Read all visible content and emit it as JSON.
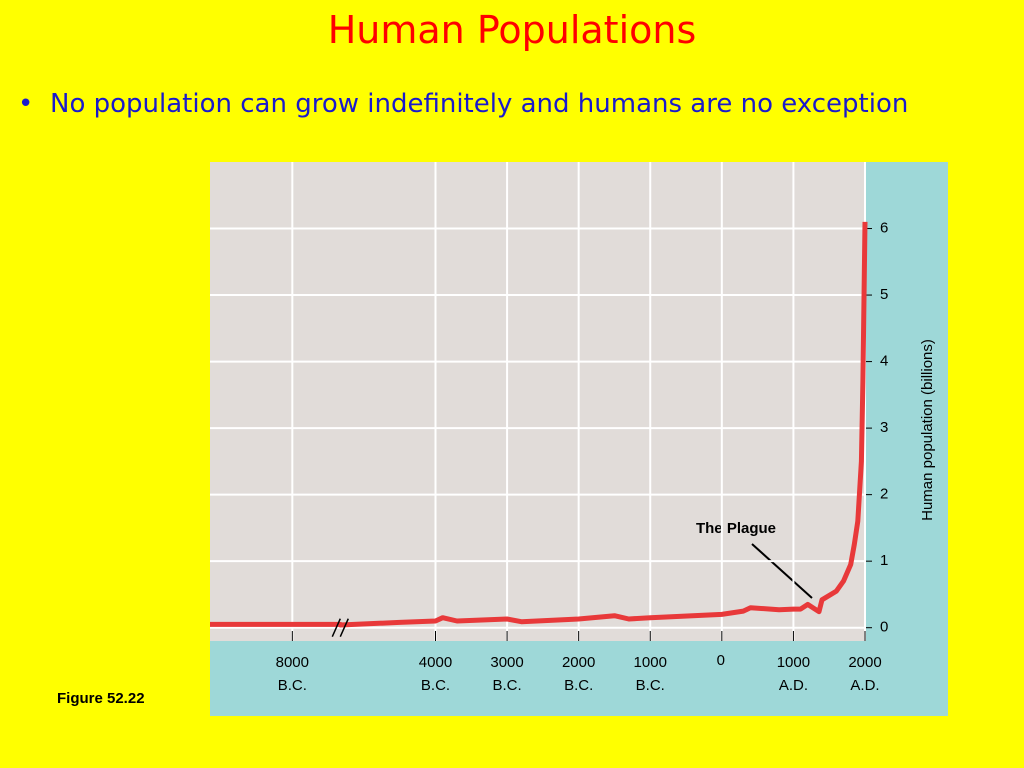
{
  "title": "Human Populations",
  "bullets": [
    "No population can grow indefinitely and humans are no exception"
  ],
  "figure_label": "Figure 52.22",
  "chart_data": {
    "type": "line",
    "y_label": "Human population (billions)",
    "annotation": "The Plague",
    "xlim": [
      -9150,
      2000
    ],
    "x_break": [
      -7330,
      -5330
    ],
    "xticks": [
      {
        "value": -8000,
        "label": "8000",
        "era": "B.C."
      },
      {
        "value": -4000,
        "label": "4000",
        "era": "B.C."
      },
      {
        "value": -3000,
        "label": "3000",
        "era": "B.C."
      },
      {
        "value": -2000,
        "label": "2000",
        "era": "B.C."
      },
      {
        "value": -1000,
        "label": "1000",
        "era": "B.C."
      },
      0,
      {
        "value": 1000,
        "label": "1000",
        "era": "A.D."
      },
      {
        "value": 2000,
        "label": "2000",
        "era": "A.D."
      }
    ],
    "ylim": [
      -0.2,
      7
    ],
    "yticks": [
      0,
      1,
      2,
      3,
      4,
      5,
      6
    ],
    "grid": true,
    "series": [
      {
        "name": "Human population",
        "color": "#e8393a",
        "x": [
          -9150,
          -8000,
          -7330,
          -5330,
          -4500,
          -4000,
          -3900,
          -3700,
          -3000,
          -2800,
          -2000,
          -1500,
          -1300,
          -1000,
          0,
          300,
          400,
          800,
          1000,
          1100,
          1200,
          1357,
          1400,
          1600,
          1700,
          1800,
          1850,
          1900,
          1950,
          1970,
          1990,
          2000
        ],
        "values": [
          0.05,
          0.05,
          0.05,
          0.04,
          0.08,
          0.1,
          0.15,
          0.1,
          0.13,
          0.09,
          0.13,
          0.18,
          0.13,
          0.15,
          0.2,
          0.25,
          0.3,
          0.27,
          0.28,
          0.28,
          0.35,
          0.24,
          0.42,
          0.55,
          0.7,
          0.95,
          1.25,
          1.6,
          2.5,
          3.7,
          5.3,
          6.1
        ]
      }
    ]
  }
}
